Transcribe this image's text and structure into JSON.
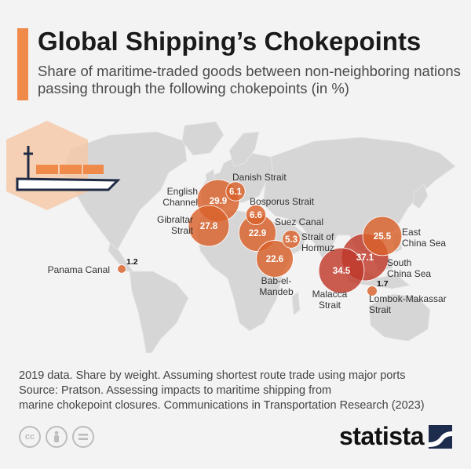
{
  "title": "Global Shipping’s Chokepoints",
  "subtitle": "Share of maritime-traded goods between non-neighboring nations passing through the following chokepoints (in %)",
  "notes": {
    "line1": "2019 data. Share by weight. Assuming shortest route trade using major ports",
    "line2": "Source: Pratson. Assessing impacts to maritime shipping from",
    "line3": "marine chokepoint closures. Communications in Transportation Research (2023)"
  },
  "brand": "statista",
  "license_icons": [
    "cc-icon",
    "attribution-icon",
    "no-derivatives-icon"
  ],
  "colors": {
    "accent": "#f08a4b",
    "bubble": "#d9622b",
    "bubble_dark": "#c0392b",
    "map": "#d6d6d6",
    "brand": "#1d2c4d"
  },
  "chart_data": {
    "type": "bubble-map",
    "title": "Global Shipping’s Chokepoints",
    "unit": "%",
    "points": [
      {
        "name": "Danish Strait",
        "value": 6.1
      },
      {
        "name": "English Channel",
        "value": 29.9
      },
      {
        "name": "Gibraltar Strait",
        "value": 27.8
      },
      {
        "name": "Bosporus Strait",
        "value": 6.6
      },
      {
        "name": "Suez Canal",
        "value": 22.9
      },
      {
        "name": "Strait of Hormuz",
        "value": 5.3
      },
      {
        "name": "Bab-el-Mandeb",
        "value": 22.6
      },
      {
        "name": "East China Sea",
        "value": 25.5
      },
      {
        "name": "South China Sea",
        "value": 37.1
      },
      {
        "name": "Malacca Strait",
        "value": 34.5
      },
      {
        "name": "Lombok-Makassar Strait",
        "value": 1.7
      },
      {
        "name": "Panama Canal",
        "value": 1.2
      }
    ],
    "labels": {
      "Danish Strait": [
        "Danish Strait"
      ],
      "English Channel": [
        "English",
        "Channel"
      ],
      "Gibraltar Strait": [
        "Gibraltar",
        "Strait"
      ],
      "Bosporus Strait": [
        "Bosporus Strait"
      ],
      "Suez Canal": [
        "Suez Canal"
      ],
      "Strait of Hormuz": [
        "Strait of",
        "Hormuz"
      ],
      "Bab-el-Mandeb": [
        "Bab-el-",
        "Mandeb"
      ],
      "East China Sea": [
        "East",
        "China Sea"
      ],
      "South China Sea": [
        "South",
        "China Sea"
      ],
      "Malacca Strait": [
        "Malacca",
        "Strait"
      ],
      "Lombok-Makassar Strait": [
        "Lombok-Makassar",
        "Strait"
      ],
      "Panama Canal": [
        "Panama Canal"
      ]
    }
  }
}
